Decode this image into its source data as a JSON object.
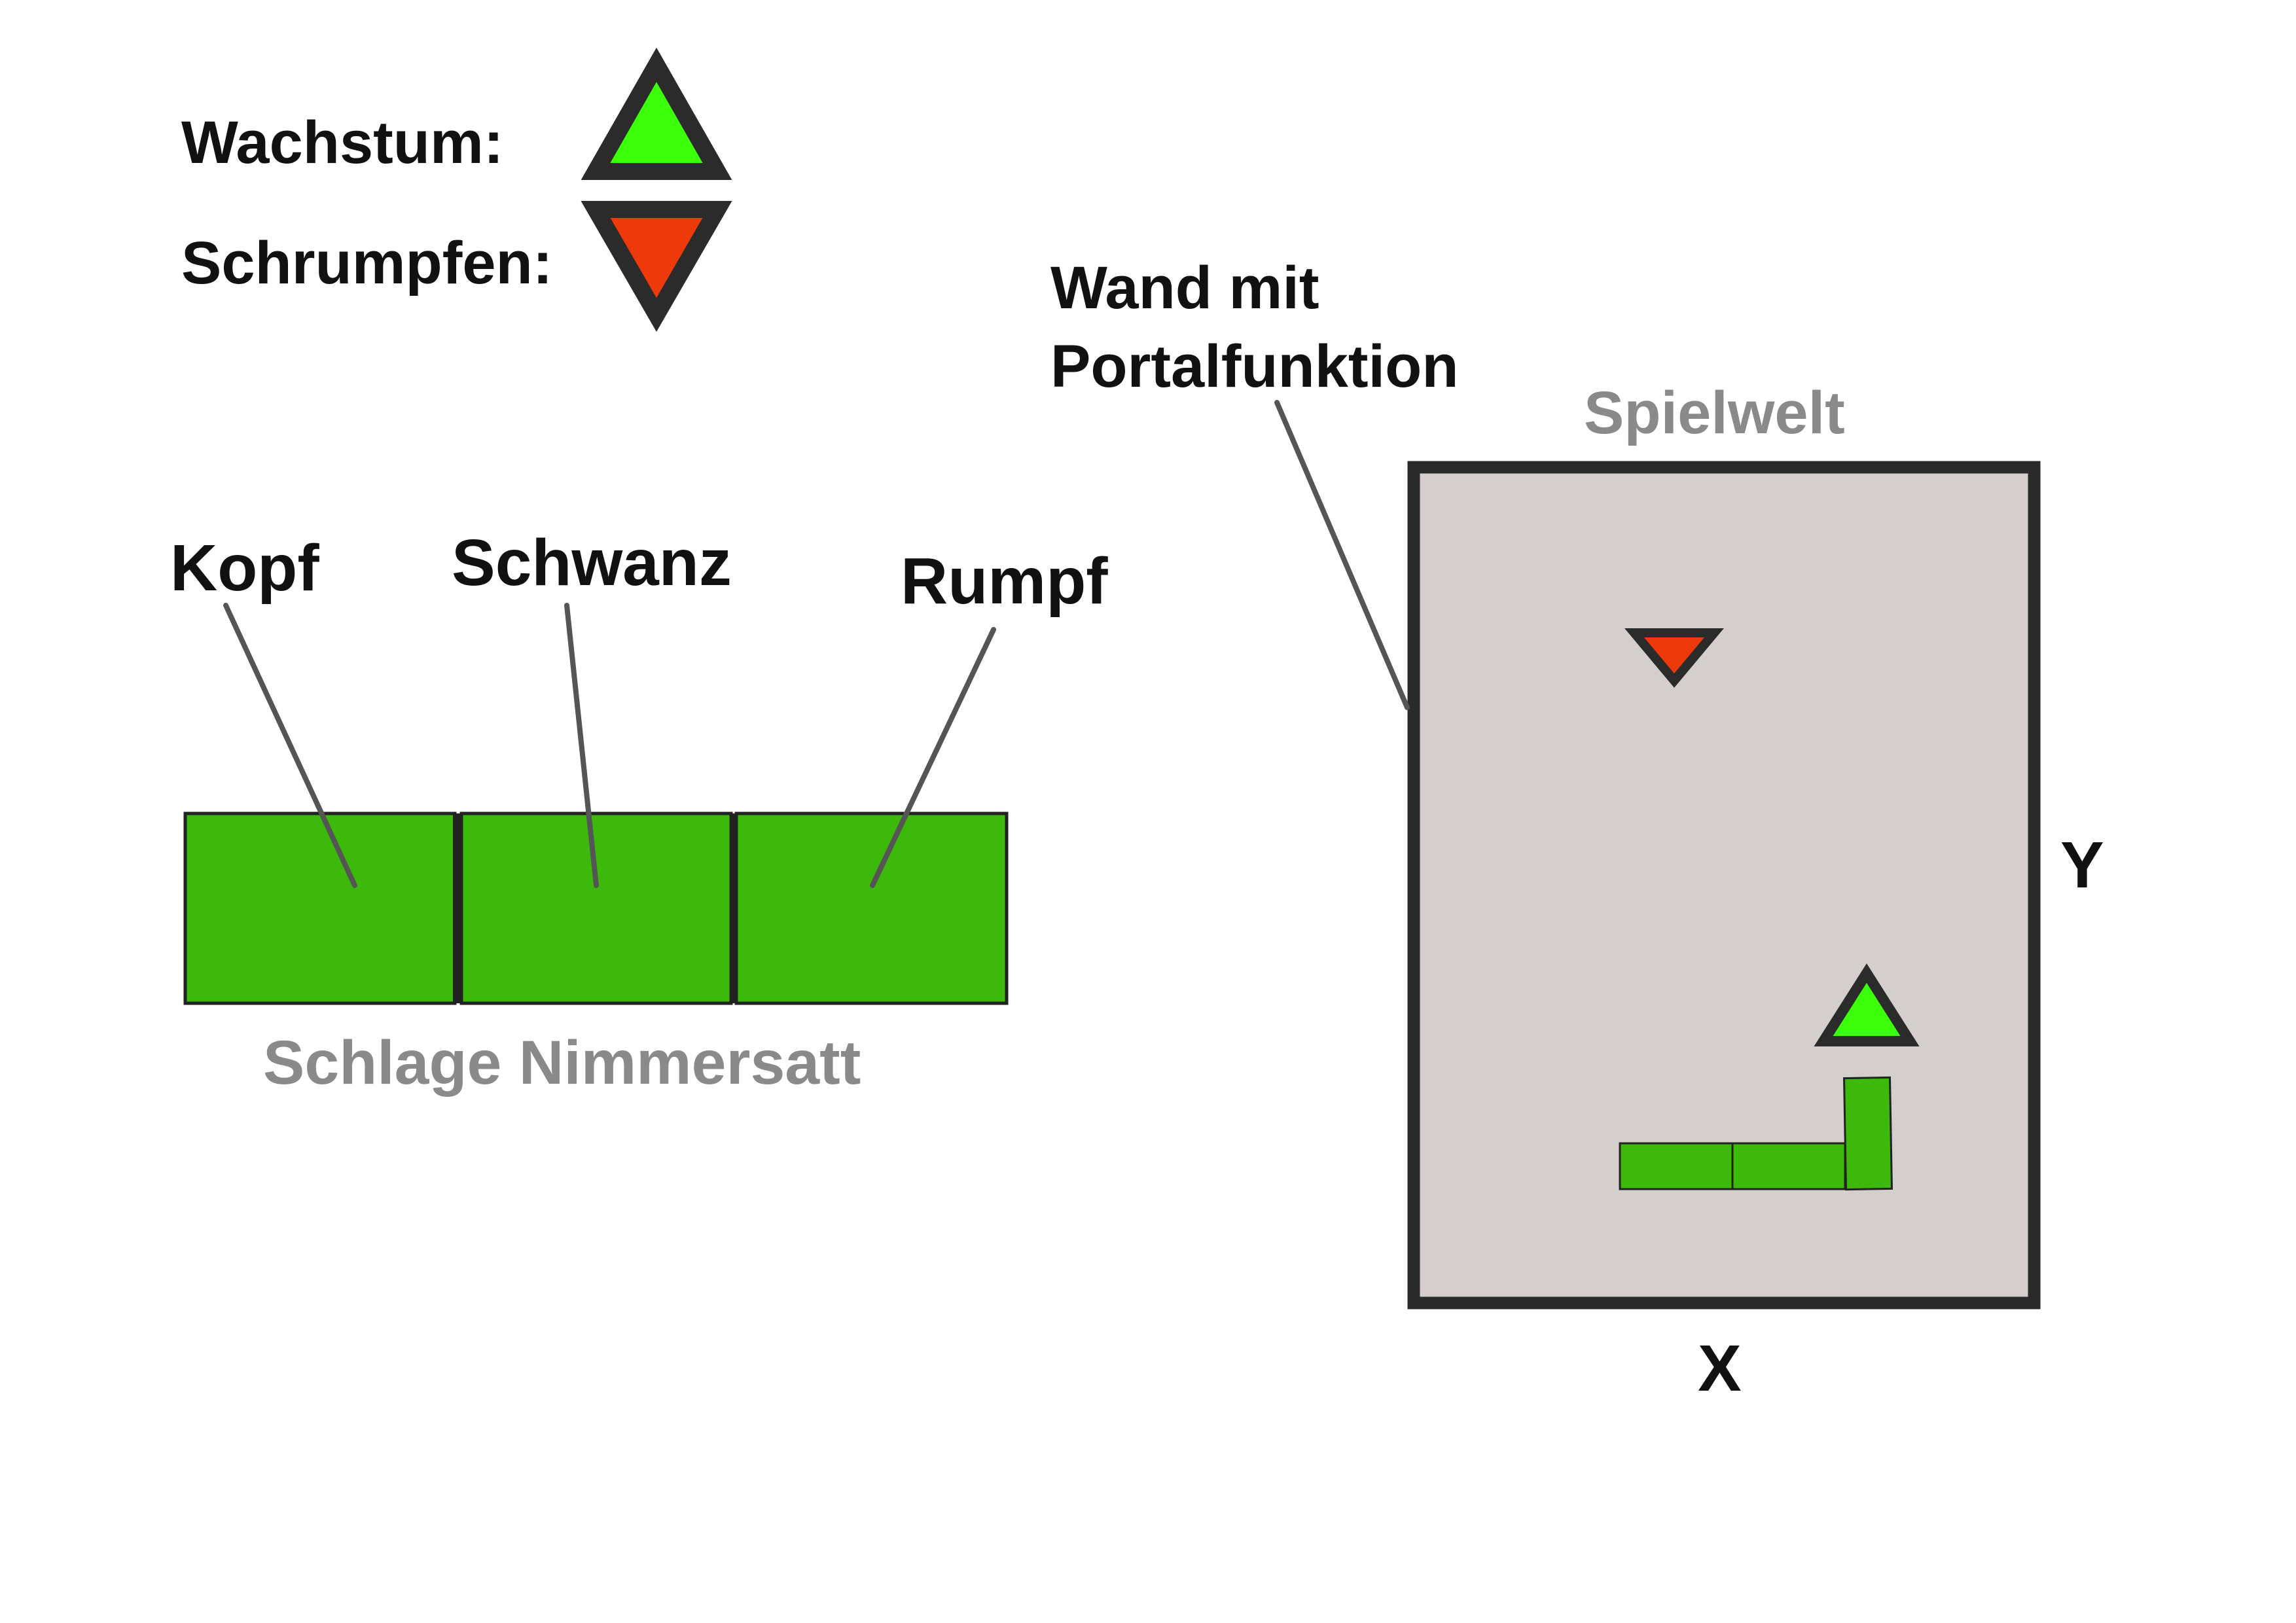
{
  "legend": {
    "growth_label": "Wachstum:",
    "growth_icon": "green-up-triangle-icon",
    "growth_color": "#3cff0a",
    "shrink_label": "Schrumpfen:",
    "shrink_icon": "red-down-triangle-icon",
    "shrink_color": "#ee3a0b",
    "outline_color": "#2b2b2b"
  },
  "snake": {
    "caption": "Schlage Nimmersatt",
    "segment_color": "#3db90c",
    "parts": [
      {
        "label": "Kopf"
      },
      {
        "label": "Schwanz"
      },
      {
        "label": "Rumpf"
      }
    ]
  },
  "world": {
    "title": "Spielwelt",
    "background_color": "#d4cfcc",
    "wall_label_line1": "Wand mit",
    "wall_label_line2": "Portalfunktion",
    "x_axis": "X",
    "y_axis": "Y"
  }
}
